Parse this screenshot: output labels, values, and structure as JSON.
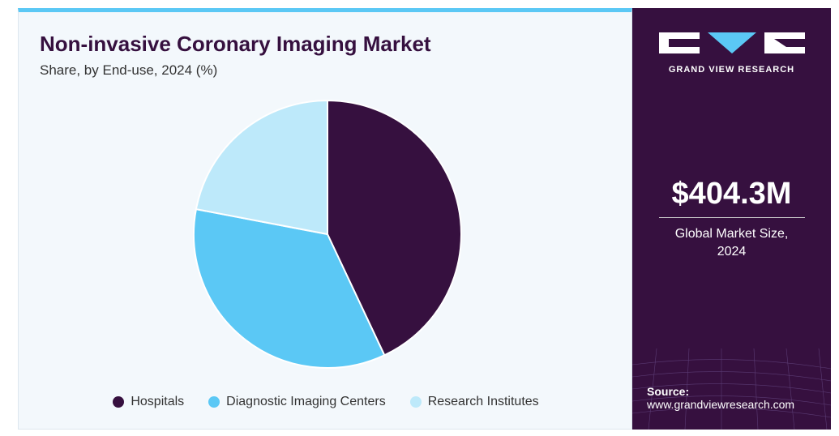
{
  "chart_data": {
    "type": "pie",
    "title": "Non-invasive Coronary Imaging Market",
    "subtitle": "Share, by End-use, 2024 (%)",
    "categories": [
      "Hospitals",
      "Diagnostic Imaging Centers",
      "Research Institutes"
    ],
    "values": [
      43,
      35,
      22
    ],
    "colors": [
      "#36103f",
      "#5bc8f5",
      "#bde9fa"
    ],
    "legend": "bottom"
  },
  "sidebar": {
    "brand": "GRAND VIEW RESEARCH",
    "market_size": "$404.3M",
    "market_size_label": "Global Market Size, 2024",
    "source_label": "Source:",
    "source_url": "www.grandviewresearch.com"
  }
}
